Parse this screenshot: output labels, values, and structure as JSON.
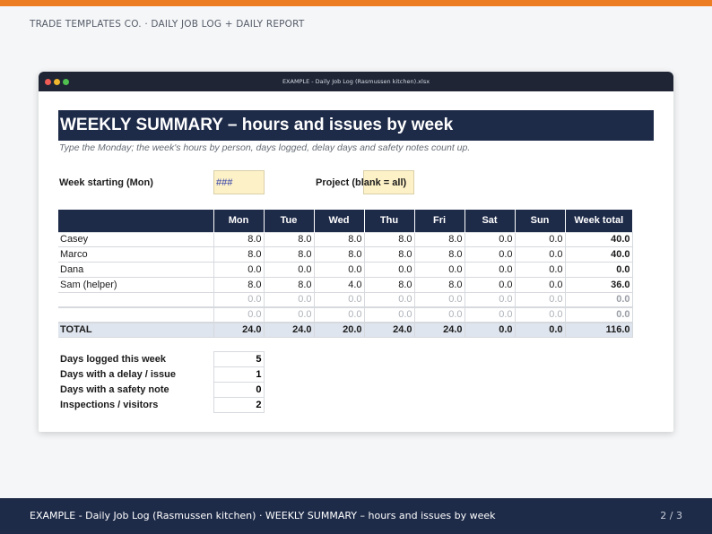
{
  "header": {
    "text": "TRADE TEMPLATES CO.  ·  DAILY JOB LOG + DAILY REPORT"
  },
  "window": {
    "title": "EXAMPLE - Daily Job Log (Rasmussen kitchen).xlsx"
  },
  "sheet": {
    "title": "WEEKLY SUMMARY – hours and issues by week",
    "subtitle": "Type the Monday; the week's hours by person, days logged, delay days and safety notes count up.",
    "week_label": "Week starting (Mon)",
    "week_value": "###",
    "project_label": "Project (blank = all)",
    "project_value": ""
  },
  "table": {
    "columns": [
      "",
      "Mon",
      "Tue",
      "Wed",
      "Thu",
      "Fri",
      "Sat",
      "Sun",
      "Week total"
    ],
    "rows": [
      {
        "name": "Casey",
        "values": [
          "8.0",
          "8.0",
          "8.0",
          "8.0",
          "8.0",
          "0.0",
          "0.0"
        ],
        "total": "40.0"
      },
      {
        "name": "Marco",
        "values": [
          "8.0",
          "8.0",
          "8.0",
          "8.0",
          "8.0",
          "0.0",
          "0.0"
        ],
        "total": "40.0"
      },
      {
        "name": "Dana",
        "values": [
          "0.0",
          "0.0",
          "0.0",
          "0.0",
          "0.0",
          "0.0",
          "0.0"
        ],
        "total": "0.0"
      },
      {
        "name": "Sam (helper)",
        "values": [
          "8.0",
          "8.0",
          "4.0",
          "8.0",
          "8.0",
          "0.0",
          "0.0"
        ],
        "total": "36.0"
      },
      {
        "name": "",
        "values": [
          "0.0",
          "0.0",
          "0.0",
          "0.0",
          "0.0",
          "0.0",
          "0.0"
        ],
        "total": "0.0"
      },
      {
        "name": "",
        "values": [
          "0.0",
          "0.0",
          "0.0",
          "0.0",
          "0.0",
          "0.0",
          "0.0"
        ],
        "total": "0.0"
      }
    ],
    "total_row": {
      "label": "TOTAL",
      "values": [
        "24.0",
        "24.0",
        "20.0",
        "24.0",
        "24.0",
        "0.0",
        "0.0"
      ],
      "total": "116.0"
    }
  },
  "summary": [
    {
      "label": "Days logged this week",
      "value": "5"
    },
    {
      "label": "Days with a delay / issue",
      "value": "1"
    },
    {
      "label": "Days with a safety note",
      "value": "0"
    },
    {
      "label": "Inspections / visitors",
      "value": "2"
    }
  ],
  "footer": {
    "text": "EXAMPLE - Daily Job Log (Rasmussen kitchen) · WEEKLY SUMMARY – hours and issues by week",
    "page": "2 / 3"
  },
  "colors": {
    "accent": "#ec7d23",
    "navy": "#1d2a48",
    "input_fill": "#fdf1c7"
  }
}
